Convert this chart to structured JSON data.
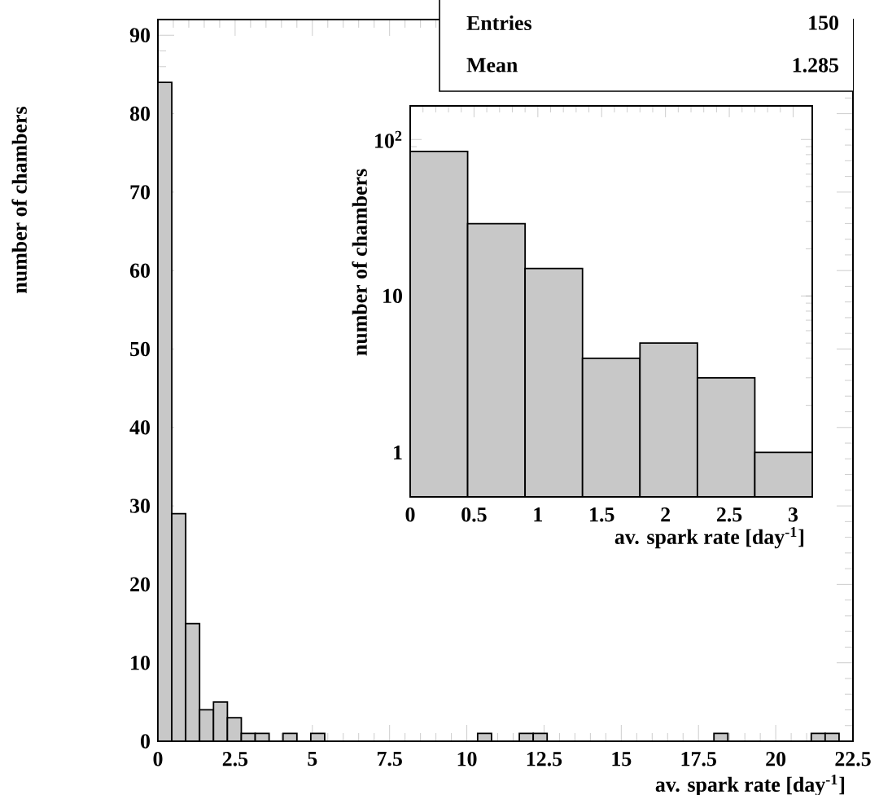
{
  "chart_data": [
    {
      "type": "histogram",
      "xlabel": "av. spark rate [day$^{-1}$]",
      "ylabel": "number of chambers",
      "color": "#c8c8c8",
      "bins": [
        0,
        0.45,
        0.9,
        1.35,
        1.8,
        2.25,
        2.7,
        3.15,
        3.6,
        4.05,
        4.5,
        4.95,
        5.4,
        5.85,
        6.3,
        6.75,
        7.2,
        7.65,
        8.1,
        8.55,
        9,
        9.45,
        9.9,
        10.35,
        10.8,
        11.25,
        11.7,
        12.15,
        12.6,
        13.05,
        13.5,
        13.95,
        14.4,
        14.85,
        15.3,
        15.75,
        16.2,
        16.65,
        17.1,
        17.55,
        18,
        18.45,
        18.9,
        19.35,
        19.8,
        20.25,
        20.7,
        21.15,
        21.6,
        22.05,
        22.5
      ],
      "values": [
        84,
        29,
        15,
        4,
        5,
        3,
        1,
        1,
        0,
        1,
        0,
        1,
        0,
        0,
        0,
        0,
        0,
        0,
        0,
        0,
        0,
        0,
        0,
        1,
        0,
        0,
        1,
        1,
        0,
        0,
        0,
        0,
        0,
        0,
        0,
        0,
        0,
        0,
        0,
        0,
        1,
        0,
        0,
        0,
        0,
        0,
        0,
        1,
        1,
        0
      ],
      "xlim": [
        0,
        22.5
      ],
      "ylim": [
        0,
        92
      ],
      "xticks": [
        0,
        2.5,
        5,
        7.5,
        10,
        12.5,
        15,
        17.5,
        20,
        22.5
      ],
      "yticks": [
        0,
        10,
        20,
        30,
        40,
        50,
        60,
        70,
        80,
        90
      ],
      "annotations": [
        "Entries",
        "150",
        "Mean",
        "1.285"
      ]
    },
    {
      "type": "histogram",
      "xlabel": "av. spark rate [day$^{-1}$]",
      "ylabel": "number of chambers",
      "color": "#c8c8c8",
      "bins": [
        0,
        0.45,
        0.9,
        1.35,
        1.8,
        2.25,
        2.7,
        3.15
      ],
      "values": [
        84,
        29,
        15,
        4,
        5,
        3,
        1
      ],
      "xlim": [
        0,
        3.15
      ],
      "ylim": [
        0.52,
        164
      ],
      "log": "y",
      "xticks": [
        0,
        0.5,
        1,
        1.5,
        2,
        2.5,
        3
      ],
      "yticks": [
        1,
        10,
        {
          "value": 100,
          "label": "10$^{2}$"
        }
      ]
    }
  ]
}
